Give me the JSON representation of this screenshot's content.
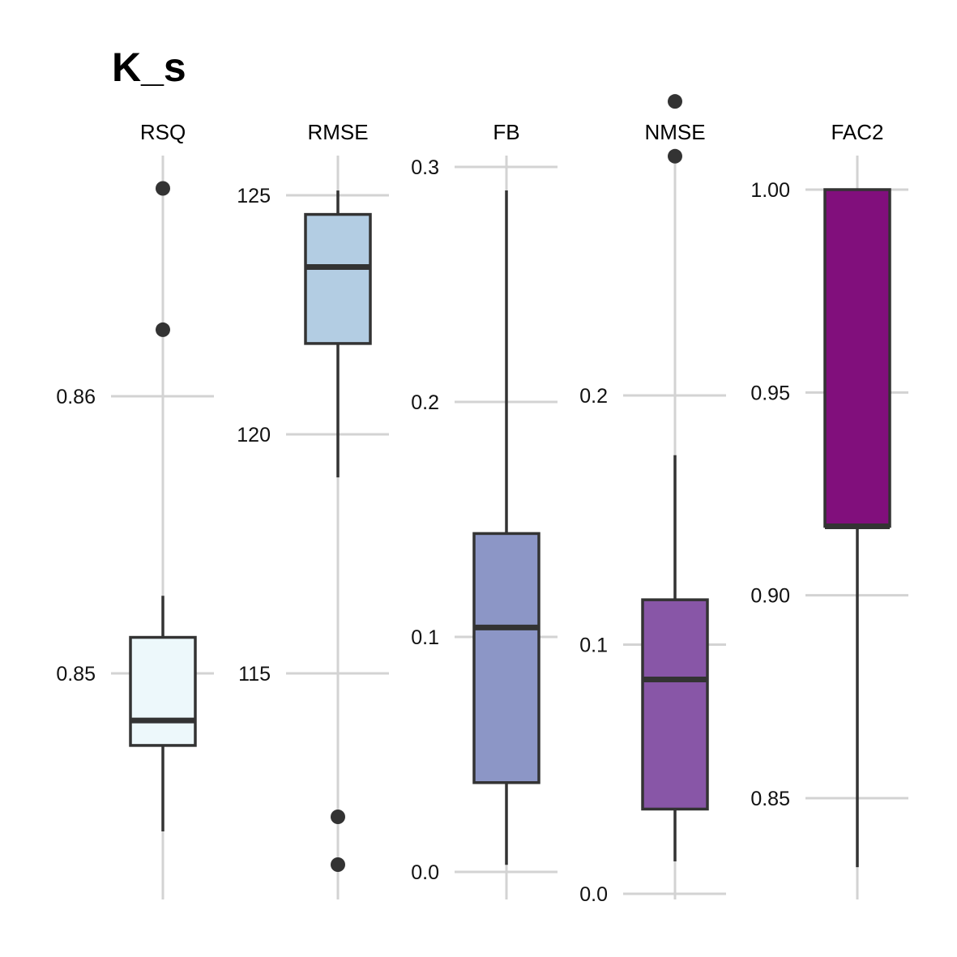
{
  "chart_data": {
    "type": "box",
    "title": "K_s",
    "panels": [
      {
        "name": "RSQ",
        "ticks": [
          0.85,
          0.86
        ],
        "tick_labels": [
          "0.85",
          "0.86"
        ],
        "stats": {
          "min": 0.8443,
          "q1": 0.8474,
          "median": 0.8483,
          "q3": 0.8513,
          "max": 0.8528
        },
        "outliers": [
          0.8624,
          0.8675
        ],
        "fill": "#EDF8FB"
      },
      {
        "name": "RMSE",
        "ticks": [
          115,
          120,
          125
        ],
        "tick_labels": [
          "115",
          "120",
          "125"
        ],
        "stats": {
          "min": 119.1,
          "q1": 121.9,
          "median": 123.5,
          "q3": 124.6,
          "max": 125.1
        },
        "outliers": [
          112.0,
          111.0
        ],
        "fill": "#B3CDE3"
      },
      {
        "name": "FB",
        "ticks": [
          0.0,
          0.1,
          0.2,
          0.3
        ],
        "tick_labels": [
          "0.0",
          "0.1",
          "0.2",
          "0.3"
        ],
        "stats": {
          "min": 0.003,
          "q1": 0.038,
          "median": 0.104,
          "q3": 0.144,
          "max": 0.29
        },
        "outliers": [],
        "fill": "#8C96C6"
      },
      {
        "name": "NMSE",
        "ticks": [
          0.0,
          0.1,
          0.2
        ],
        "tick_labels": [
          "0.0",
          "0.1",
          "0.2"
        ],
        "stats": {
          "min": 0.013,
          "q1": 0.034,
          "median": 0.086,
          "q3": 0.118,
          "max": 0.176
        },
        "outliers": [
          0.318,
          0.296
        ],
        "fill": "#8856A7"
      },
      {
        "name": "FAC2",
        "ticks": [
          0.85,
          0.9,
          0.95,
          1.0
        ],
        "tick_labels": [
          "0.85",
          "0.90",
          "0.95",
          "1.00"
        ],
        "stats": {
          "min": 0.833,
          "q1": 0.917,
          "median": 0.917,
          "q3": 1.0,
          "max": 1.0
        },
        "outliers": [],
        "fill": "#810F7C"
      }
    ]
  }
}
